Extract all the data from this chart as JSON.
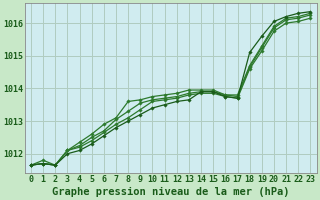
{
  "title": "Graphe pression niveau de la mer (hPa)",
  "bg_color": "#c8e8c8",
  "plot_bg_color": "#d0ecf0",
  "grid_color": "#b0ccc0",
  "dark_green": "#1a5c1a",
  "mid_green": "#2d7a2d",
  "light_green": "#3da03d",
  "x_labels": [
    "0",
    "1",
    "2",
    "3",
    "4",
    "5",
    "6",
    "7",
    "8",
    "9",
    "10",
    "11",
    "12",
    "13",
    "14",
    "15",
    "16",
    "17",
    "18",
    "19",
    "20",
    "21",
    "22",
    "23"
  ],
  "ylim": [
    1011.4,
    1016.6
  ],
  "yticks": [
    1012,
    1013,
    1014,
    1015,
    1016
  ],
  "series": [
    [
      1011.65,
      1011.7,
      1011.65,
      1012.1,
      1012.2,
      1012.4,
      1012.65,
      1012.9,
      1013.1,
      1013.35,
      1013.6,
      1013.65,
      1013.7,
      1013.8,
      1013.85,
      1013.85,
      1013.75,
      1013.7,
      1014.6,
      1015.15,
      1015.75,
      1016.0,
      1016.05,
      1016.15
    ],
    [
      1011.65,
      1011.7,
      1011.65,
      1012.1,
      1012.25,
      1012.5,
      1012.7,
      1013.05,
      1013.3,
      1013.55,
      1013.65,
      1013.7,
      1013.75,
      1013.85,
      1013.9,
      1013.9,
      1013.8,
      1013.75,
      1014.65,
      1015.25,
      1015.85,
      1016.1,
      1016.15,
      1016.25
    ],
    [
      1011.65,
      1011.8,
      1011.65,
      1012.1,
      1012.35,
      1012.6,
      1012.9,
      1013.1,
      1013.6,
      1013.65,
      1013.75,
      1013.8,
      1013.85,
      1013.95,
      1013.95,
      1013.95,
      1013.8,
      1013.8,
      1014.7,
      1015.3,
      1015.9,
      1016.15,
      1016.2,
      1016.3
    ],
    [
      1011.65,
      1011.7,
      1011.65,
      1012.0,
      1012.1,
      1012.3,
      1012.55,
      1012.8,
      1013.0,
      1013.2,
      1013.4,
      1013.5,
      1013.6,
      1013.65,
      1013.9,
      1013.9,
      1013.75,
      1013.7,
      1015.1,
      1015.6,
      1016.05,
      1016.2,
      1016.3,
      1016.35
    ]
  ],
  "title_fontsize": 7.5,
  "tick_fontsize": 6.0
}
